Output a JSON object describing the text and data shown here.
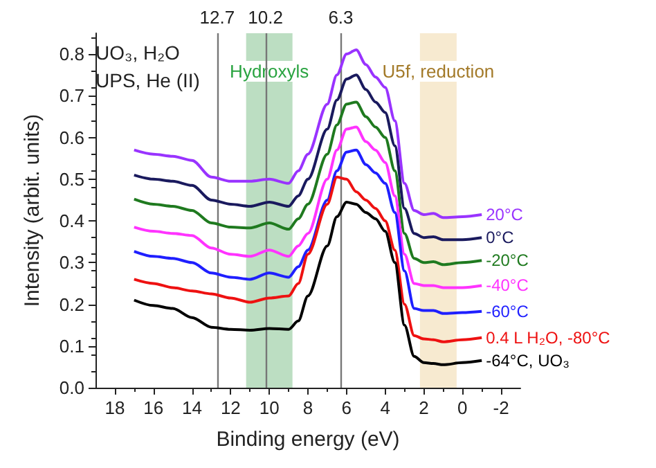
{
  "chart_data": {
    "type": "line",
    "title": "UO₃, H₂O",
    "subtitle": "UPS, He (II)",
    "xlabel": "Binding energy (eV)",
    "ylabel": "Intensity (arbit. units)",
    "x": [
      17,
      16,
      15,
      14,
      13,
      12,
      11,
      10,
      9,
      8.5,
      8,
      7,
      6.5,
      6,
      5.5,
      5,
      4.5,
      4,
      3.5,
      3,
      2.5,
      2,
      1.5,
      1,
      0,
      -1
    ],
    "series": [
      {
        "name": "20°C",
        "color": "#9933ff",
        "values": [
          0.57,
          0.56,
          0.555,
          0.545,
          0.505,
          0.495,
          0.495,
          0.5,
          0.49,
          0.52,
          0.56,
          0.68,
          0.75,
          0.8,
          0.81,
          0.775,
          0.745,
          0.72,
          0.64,
          0.49,
          0.425,
          0.415,
          0.418,
          0.408,
          0.41,
          0.415
        ]
      },
      {
        "name": "0°C",
        "color": "#1a1a5e",
        "values": [
          0.51,
          0.5,
          0.495,
          0.485,
          0.45,
          0.44,
          0.435,
          0.445,
          0.435,
          0.46,
          0.5,
          0.62,
          0.69,
          0.74,
          0.75,
          0.715,
          0.685,
          0.66,
          0.58,
          0.43,
          0.37,
          0.36,
          0.362,
          0.355,
          0.355,
          0.36
        ]
      },
      {
        "name": "-20°C",
        "color": "#1f7a1f",
        "values": [
          0.452,
          0.44,
          0.435,
          0.425,
          0.395,
          0.385,
          0.383,
          0.395,
          0.38,
          0.405,
          0.44,
          0.56,
          0.63,
          0.68,
          0.685,
          0.65,
          0.625,
          0.6,
          0.52,
          0.37,
          0.31,
          0.3,
          0.302,
          0.295,
          0.3,
          0.305
        ]
      },
      {
        "name": "-40°C",
        "color": "#ff33ff",
        "values": [
          0.385,
          0.375,
          0.37,
          0.365,
          0.335,
          0.32,
          0.315,
          0.33,
          0.315,
          0.34,
          0.37,
          0.5,
          0.57,
          0.62,
          0.625,
          0.59,
          0.57,
          0.54,
          0.46,
          0.32,
          0.25,
          0.245,
          0.245,
          0.24,
          0.24,
          0.245
        ]
      },
      {
        "name": "-60°C",
        "color": "#1f1fff",
        "values": [
          0.327,
          0.315,
          0.31,
          0.3,
          0.275,
          0.265,
          0.26,
          0.275,
          0.265,
          0.29,
          0.33,
          0.45,
          0.52,
          0.565,
          0.57,
          0.535,
          0.515,
          0.49,
          0.42,
          0.28,
          0.19,
          0.185,
          0.185,
          0.178,
          0.18,
          0.183
        ]
      },
      {
        "name": "0.4 L H₂O, -80°C",
        "color": "#ee1111",
        "values": [
          0.26,
          0.25,
          0.24,
          0.232,
          0.225,
          0.215,
          0.205,
          0.215,
          0.22,
          0.25,
          0.32,
          0.44,
          0.505,
          0.5,
          0.47,
          0.45,
          0.43,
          0.4,
          0.33,
          0.2,
          0.125,
          0.117,
          0.115,
          0.11,
          0.115,
          0.12
        ]
      },
      {
        "name": "-64°C, UO₃",
        "color": "#000000",
        "values": [
          0.21,
          0.197,
          0.19,
          0.168,
          0.145,
          0.14,
          0.138,
          0.142,
          0.14,
          0.16,
          0.22,
          0.34,
          0.41,
          0.445,
          0.44,
          0.42,
          0.405,
          0.375,
          0.3,
          0.15,
          0.075,
          0.06,
          0.058,
          0.055,
          0.06,
          0.065
        ]
      }
    ],
    "xlim": [
      19,
      -3
    ],
    "xticks": [
      18,
      16,
      14,
      12,
      10,
      8,
      6,
      4,
      2,
      0,
      -2
    ],
    "ylim": [
      0,
      0.85
    ],
    "yticks": [
      {
        "value": 0,
        "label": "0.0"
      },
      0.1,
      0.2,
      0.3,
      0.4,
      0.5,
      0.6,
      0.7,
      0.8
    ],
    "ref_lines": [
      {
        "axis": "x",
        "value": 12.7,
        "label": "12.7",
        "color": "#777777"
      },
      {
        "axis": "x",
        "value": 10.2,
        "label": "10.2",
        "color": "#777777"
      },
      {
        "axis": "x",
        "value": 6.3,
        "label": "6.3",
        "color": "#777777"
      }
    ],
    "bands": [
      {
        "axis": "x",
        "from": 11.2,
        "to": 8.8,
        "label": "Hydroxyls",
        "color": "#8fc89a"
      },
      {
        "axis": "x",
        "from": 2.2,
        "to": 0.3,
        "label": "U5f, reduction",
        "color": "#f2dcb0"
      }
    ],
    "legend": false,
    "grid": false,
    "marker": "none",
    "line_style": "solid"
  }
}
